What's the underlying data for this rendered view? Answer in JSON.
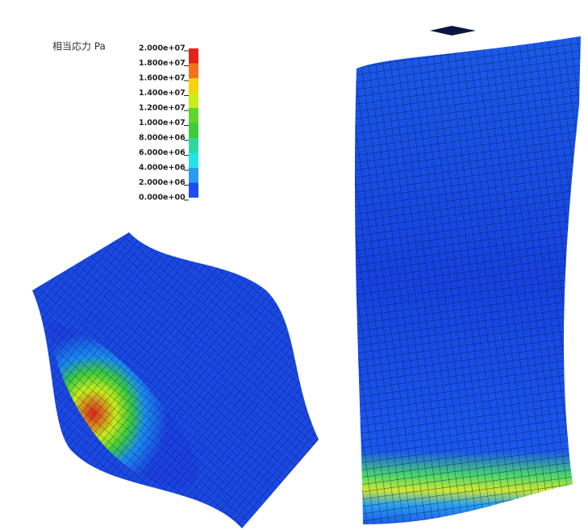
{
  "legend": {
    "title": "相当応力 Pa",
    "labels": [
      "2.000e+07",
      "1.800e+07",
      "1.600e+07",
      "1.400e+07",
      "1.200e+07",
      "1.000e+07",
      "8.000e+06",
      "6.000e+06",
      "4.000e+06",
      "2.000e+06",
      "0.000e+00"
    ],
    "colors": [
      "#e4221b",
      "#f2731a",
      "#f8d30c",
      "#c6ee1a",
      "#5fd42a",
      "#3dcc3c",
      "#2fd6a0",
      "#22e6e6",
      "#2a9cf0",
      "#1a4ef0"
    ]
  }
}
